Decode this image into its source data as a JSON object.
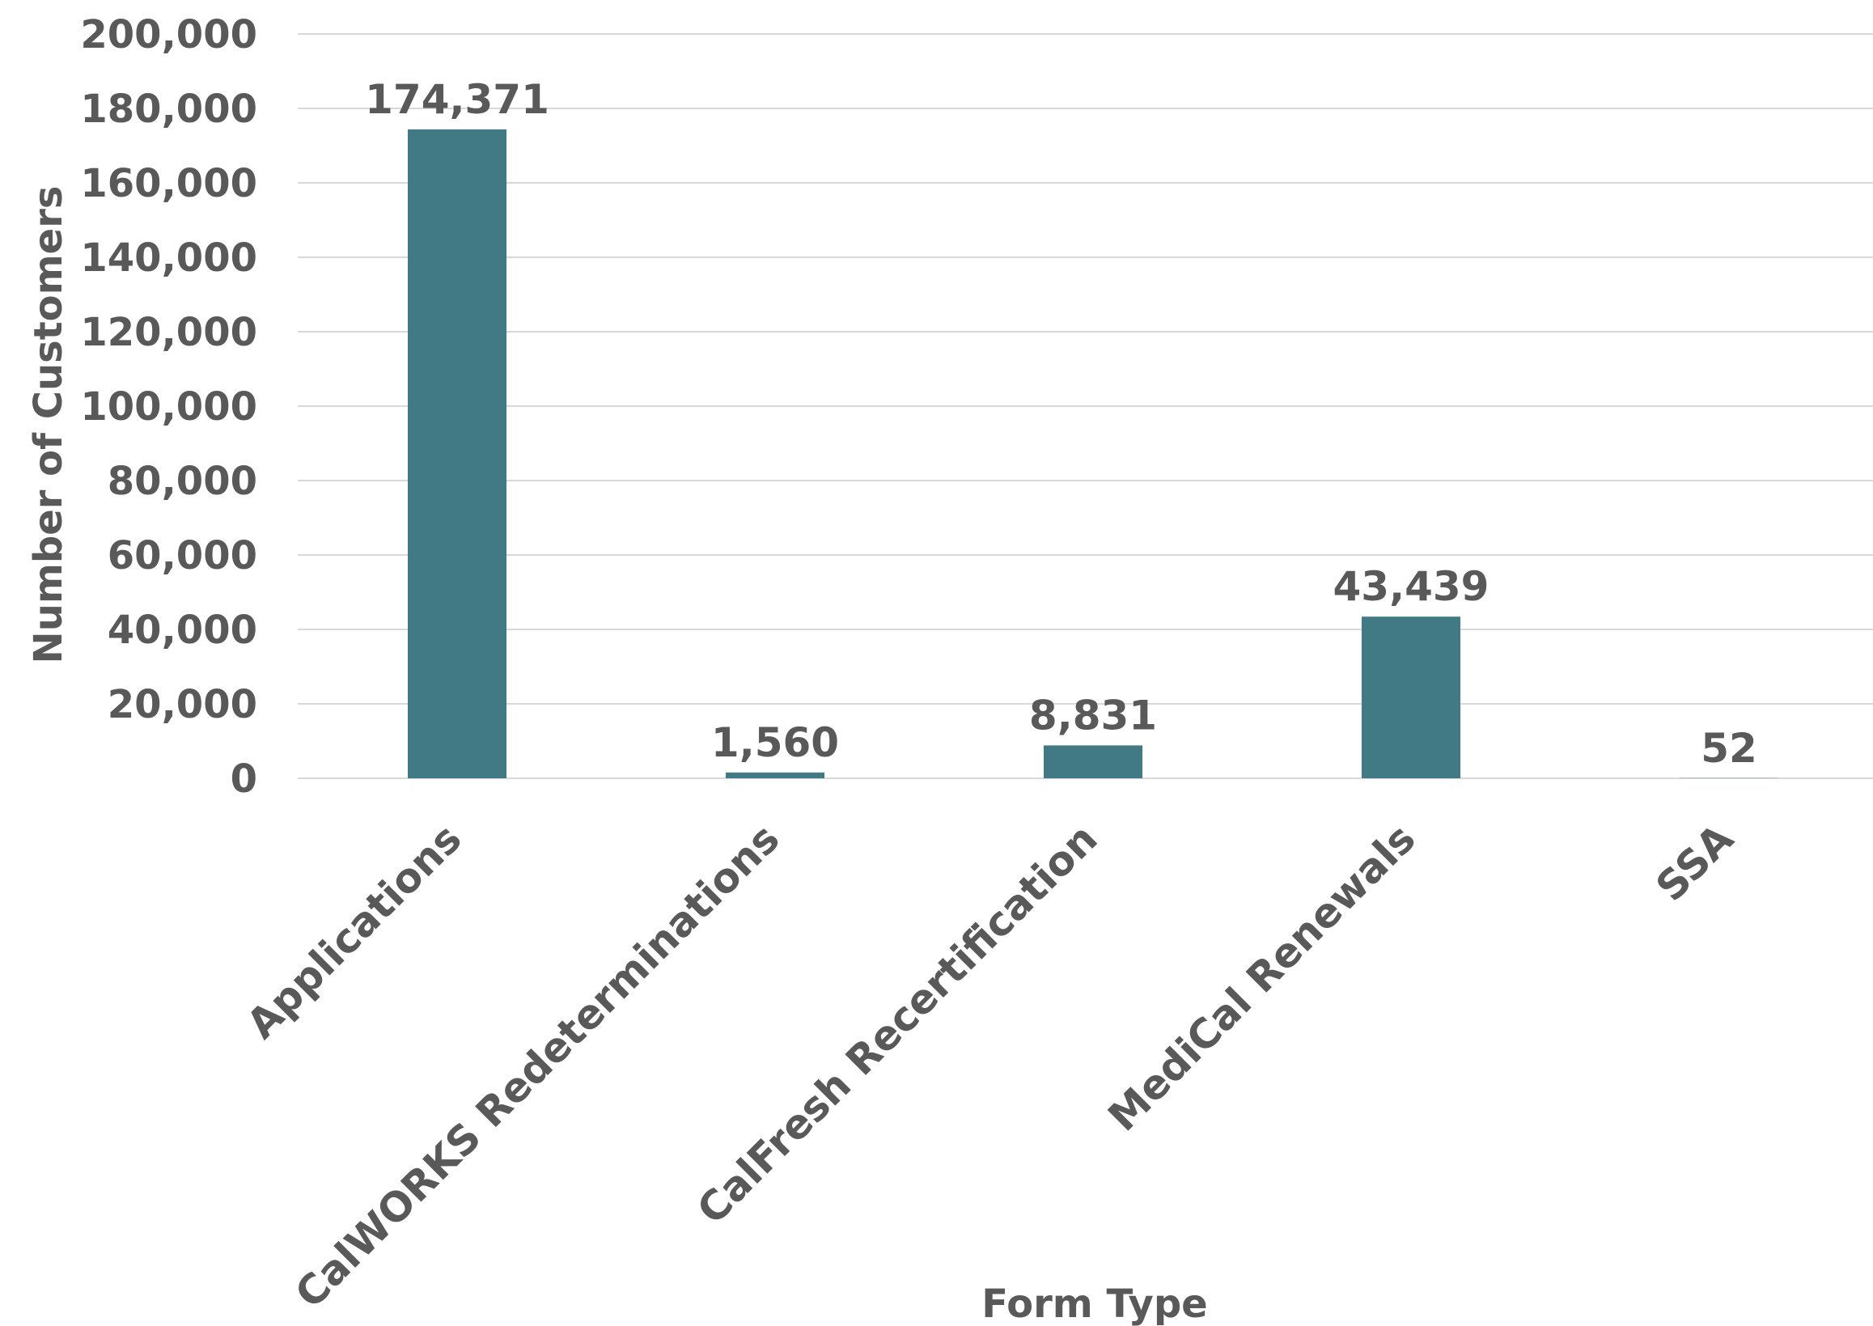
{
  "chart_data": {
    "type": "bar",
    "categories": [
      "Applications",
      "CalWORKS Redeterminations",
      "CalFresh Recertification",
      "MediCal Renewals",
      "SSA"
    ],
    "values": [
      174371,
      1560,
      8831,
      43439,
      52
    ],
    "data_labels": [
      "174,371",
      "1,560",
      "8,831",
      "43,439",
      "52"
    ],
    "xlabel": "Form Type",
    "ylabel": "Number of Customers",
    "ylim": [
      0,
      200000
    ],
    "y_ticks": [
      0,
      20000,
      40000,
      60000,
      80000,
      100000,
      120000,
      140000,
      160000,
      180000,
      200000
    ],
    "y_tick_labels": [
      "0",
      "20,000",
      "40,000",
      "60,000",
      "80,000",
      "100,000",
      "120,000",
      "140,000",
      "160,000",
      "180,000",
      "200,000"
    ],
    "grid": true,
    "legend": "none",
    "bar_color": "#417A84"
  }
}
